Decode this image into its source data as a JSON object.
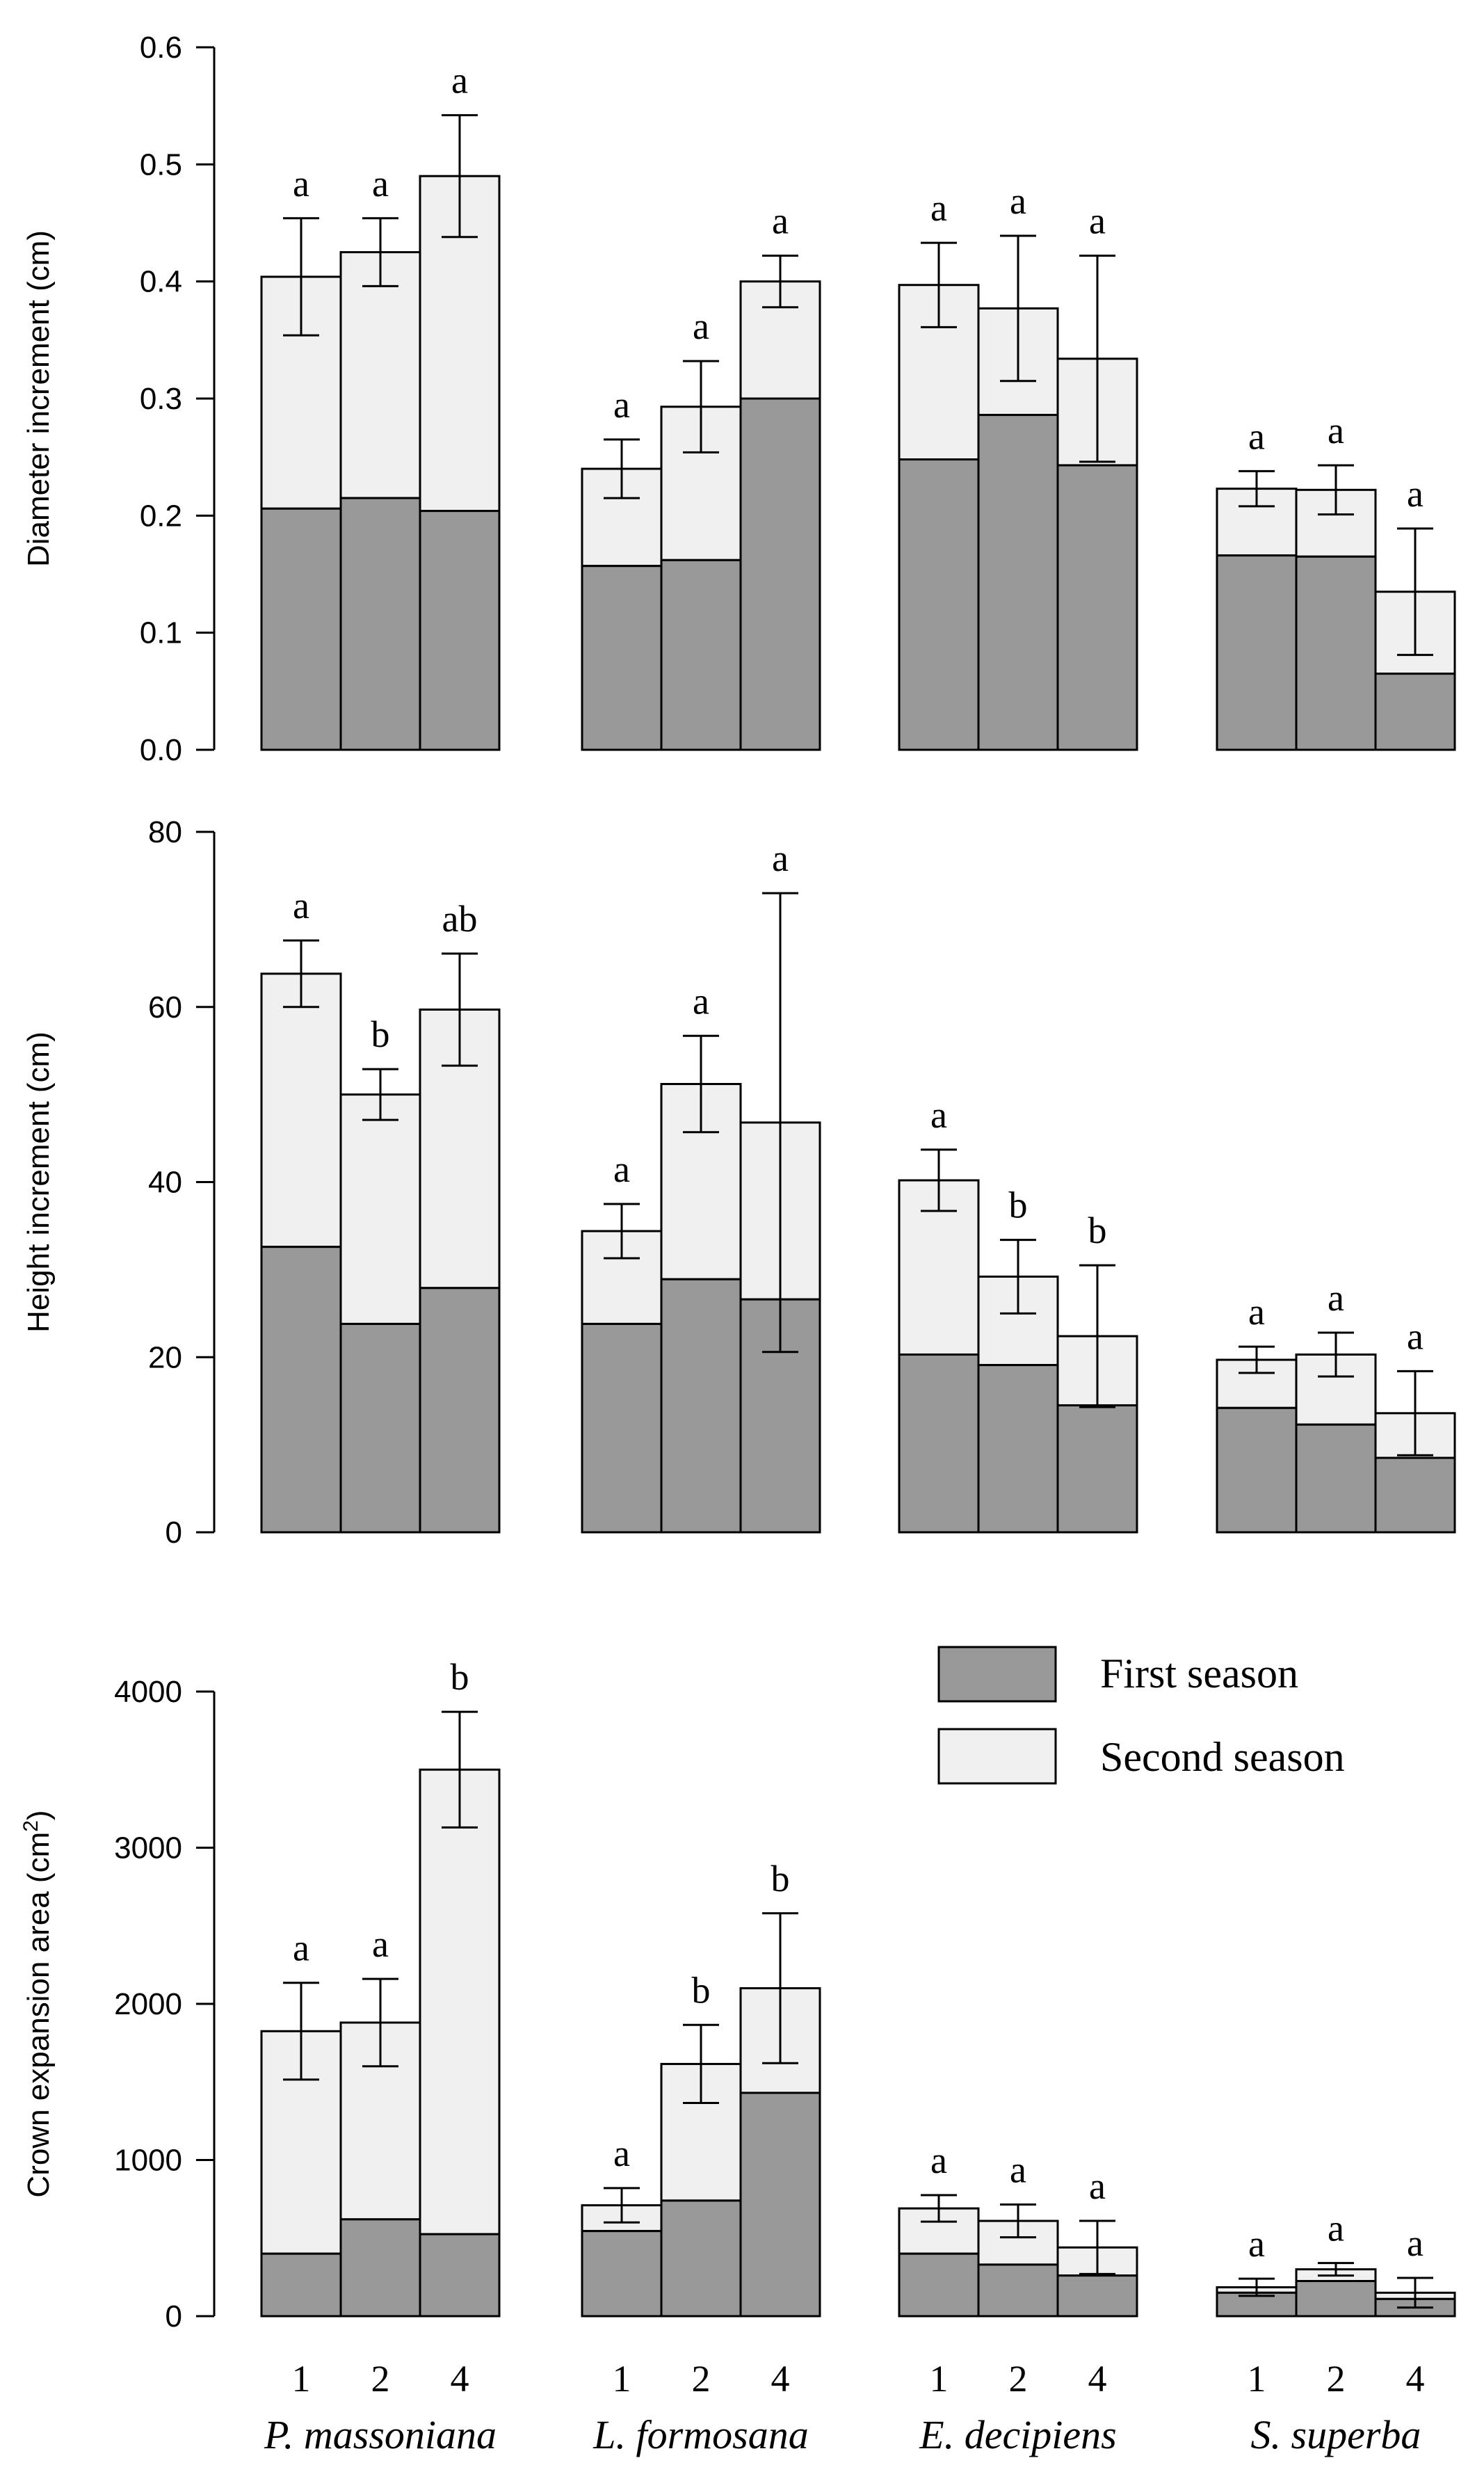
{
  "colors": {
    "first": "#999999",
    "second": "#f0f0f0",
    "stroke": "#000000"
  },
  "legend": {
    "items": [
      "First season",
      "Second season"
    ],
    "placement": "top-right of bottom panel"
  },
  "chart_data": [
    {
      "type": "bar",
      "stacked": true,
      "ylabel": "Diameter increment (cm)",
      "ylim": [
        0,
        0.6
      ],
      "yticks": [
        "0.0",
        "0.1",
        "0.2",
        "0.3",
        "0.4",
        "0.5",
        "0.6"
      ],
      "species": [
        "P. massoniana",
        "L. formosana",
        "E. decipiens",
        "S. superba"
      ],
      "groups": [
        "1",
        "2",
        "4"
      ],
      "series": [
        {
          "name": "First season",
          "values": [
            [
              0.206,
              0.215,
              0.204
            ],
            [
              0.157,
              0.162,
              0.3
            ],
            [
              0.248,
              0.286,
              0.243
            ],
            [
              0.166,
              0.165,
              0.065
            ]
          ]
        },
        {
          "name": "Second season",
          "values": [
            [
              0.198,
              0.21,
              0.286
            ],
            [
              0.083,
              0.131,
              0.1
            ],
            [
              0.149,
              0.091,
              0.091
            ],
            [
              0.057,
              0.057,
              0.07
            ]
          ]
        }
      ],
      "totals": [
        [
          0.404,
          0.425,
          0.49
        ],
        [
          0.24,
          0.293,
          0.4
        ],
        [
          0.397,
          0.377,
          0.334
        ],
        [
          0.223,
          0.222,
          0.135
        ]
      ],
      "errors": [
        [
          0.05,
          0.029,
          0.052
        ],
        [
          0.025,
          0.039,
          0.022
        ],
        [
          0.036,
          0.062,
          0.088
        ],
        [
          0.015,
          0.021,
          0.054
        ]
      ],
      "letters": [
        [
          "a",
          "a",
          "a"
        ],
        [
          "a",
          "a",
          "a"
        ],
        [
          "a",
          "a",
          "a"
        ],
        [
          "a",
          "a",
          "a"
        ]
      ]
    },
    {
      "type": "bar",
      "stacked": true,
      "ylabel": "Height increment (cm)",
      "ylim": [
        0,
        80
      ],
      "yticks": [
        "0",
        "20",
        "40",
        "60",
        "80"
      ],
      "species": [
        "P. massoniana",
        "L. formosana",
        "E. decipiens",
        "S. superba"
      ],
      "groups": [
        "1",
        "2",
        "4"
      ],
      "series": [
        {
          "name": "First season",
          "values": [
            [
              32.6,
              23.8,
              27.9
            ],
            [
              23.8,
              28.9,
              26.6
            ],
            [
              20.3,
              19.1,
              14.5
            ],
            [
              14.2,
              12.3,
              8.5
            ]
          ]
        },
        {
          "name": "Second season",
          "values": [
            [
              31.2,
              26.2,
              31.8
            ],
            [
              10.6,
              22.3,
              20.2
            ],
            [
              19.9,
              10.1,
              7.9
            ],
            [
              5.5,
              8.0,
              5.1
            ]
          ]
        }
      ],
      "totals": [
        [
          63.8,
          50.0,
          59.7
        ],
        [
          34.4,
          51.2,
          46.8
        ],
        [
          40.2,
          29.2,
          22.4
        ],
        [
          19.7,
          20.3,
          13.6
        ]
      ],
      "errors": [
        [
          3.8,
          2.9,
          6.4
        ],
        [
          3.1,
          5.5,
          26.2
        ],
        [
          3.5,
          4.2,
          8.1
        ],
        [
          1.5,
          2.5,
          4.8
        ]
      ],
      "letters": [
        [
          "a",
          "b",
          "ab"
        ],
        [
          "a",
          "a",
          "a"
        ],
        [
          "a",
          "b",
          "b"
        ],
        [
          "a",
          "a",
          "a"
        ]
      ]
    },
    {
      "type": "bar",
      "stacked": true,
      "ylabel": "Crown expansion area (cm",
      "ylabel_sup": "2",
      "ylabel_end": ")",
      "ylim": [
        0,
        4000
      ],
      "yticks": [
        "0",
        "1000",
        "2000",
        "3000",
        "4000"
      ],
      "species": [
        "P. massoniana",
        "L. formosana",
        "E. decipiens",
        "S. superba"
      ],
      "groups": [
        "1",
        "2",
        "4"
      ],
      "series": [
        {
          "name": "First season",
          "values": [
            [
              400,
              620,
              525
            ],
            [
              545,
              740,
              1430
            ],
            [
              400,
              330,
              260
            ],
            [
              150,
              225,
              110
            ]
          ]
        },
        {
          "name": "Second season",
          "values": [
            [
              1425,
              1260,
              2975
            ],
            [
              165,
              875,
              670
            ],
            [
              290,
              280,
              180
            ],
            [
              35,
              75,
              40
            ]
          ]
        }
      ],
      "totals": [
        [
          1825,
          1880,
          3500
        ],
        [
          710,
          1615,
          2100
        ],
        [
          690,
          610,
          440
        ],
        [
          185,
          300,
          150
        ]
      ],
      "errors": [
        [
          310,
          280,
          370
        ],
        [
          110,
          250,
          480
        ],
        [
          85,
          105,
          170
        ],
        [
          55,
          40,
          95
        ]
      ],
      "letters": [
        [
          "a",
          "a",
          "b"
        ],
        [
          "a",
          "b",
          "b"
        ],
        [
          "a",
          "a",
          "a"
        ],
        [
          "a",
          "a",
          "a"
        ]
      ]
    }
  ]
}
